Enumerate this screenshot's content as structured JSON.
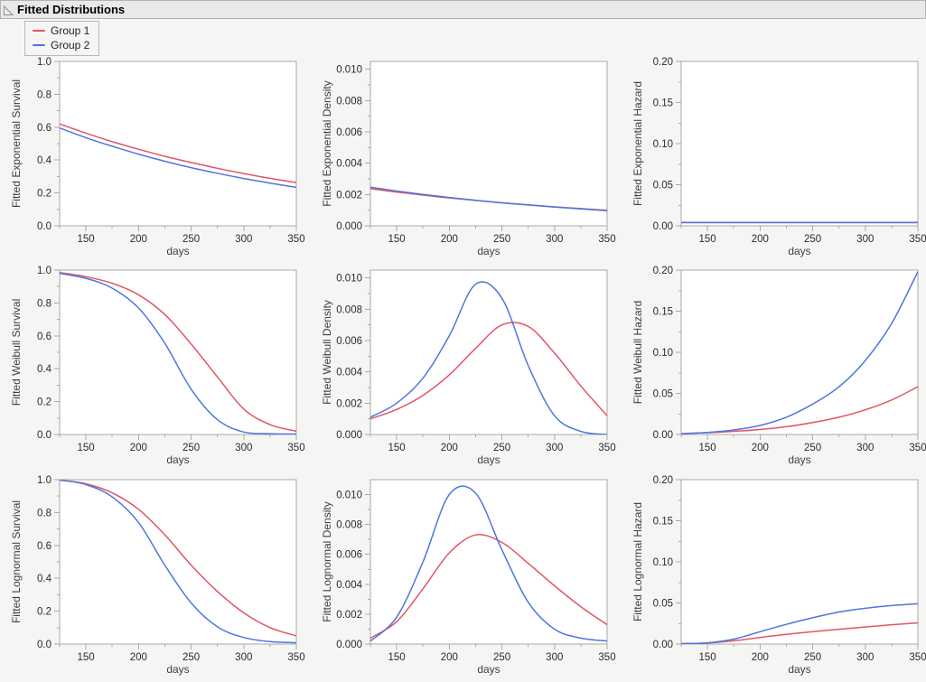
{
  "header": {
    "title": "Fitted Distributions",
    "disclosure_state": "expanded"
  },
  "legend": {
    "position": "top-left",
    "items": [
      {
        "label": "Group 1",
        "color": "#e25563"
      },
      {
        "label": "Group 2",
        "color": "#4c77dc"
      }
    ]
  },
  "theme": {
    "page_bg": "#f5f5f4",
    "band_bg": "#e9e9e9",
    "plot_bg": "#ffffff",
    "frame_color": "#a9a9a9",
    "tick_color": "#a9a9a9",
    "group1_color": "#e25563",
    "group2_color": "#4c77dc"
  },
  "chart_data": {
    "type": "line",
    "grid": false,
    "layout": "3x3",
    "xlabel": "days",
    "xlim": [
      125,
      350
    ],
    "x": [
      125,
      150,
      175,
      200,
      225,
      250,
      275,
      300,
      325,
      350
    ],
    "xticks_major": [
      150,
      200,
      250,
      300,
      350
    ],
    "xticks_minor": [
      125,
      175,
      225,
      275,
      325
    ],
    "plots": [
      {
        "name": "fitted-exponential-survival",
        "ylabel": "Fitted Exponential Survival",
        "ylim": [
          0,
          1.0
        ],
        "yticks_major": [
          0,
          0.2,
          0.4,
          0.6,
          0.8,
          1.0
        ],
        "ytick_labels": [
          "0.0",
          "0.2",
          "0.4",
          "0.6",
          "0.8",
          "1.0"
        ],
        "yticks_minor": [
          0.1,
          0.3,
          0.5,
          0.7,
          0.9
        ],
        "series": [
          {
            "name": "Group 1",
            "values": [
              0.62,
              0.564,
              0.512,
              0.466,
              0.423,
              0.385,
              0.35,
              0.318,
              0.289,
              0.263
            ]
          },
          {
            "name": "Group 2",
            "values": [
              0.595,
              0.536,
              0.484,
              0.436,
              0.393,
              0.354,
              0.32,
              0.288,
              0.26,
              0.234
            ]
          }
        ]
      },
      {
        "name": "fitted-exponential-density",
        "ylabel": "Fitted Exponential Density",
        "ylim": [
          0,
          0.0105
        ],
        "yticks_major": [
          0,
          0.002,
          0.004,
          0.006,
          0.008,
          0.01
        ],
        "ytick_labels": [
          "0.000",
          "0.002",
          "0.004",
          "0.006",
          "0.008",
          "0.010"
        ],
        "yticks_minor": [
          0.001,
          0.003,
          0.005,
          0.007,
          0.009
        ],
        "series": [
          {
            "name": "Group 1",
            "values": [
              0.00237,
              0.00216,
              0.00196,
              0.00178,
              0.00162,
              0.00147,
              0.00134,
              0.00121,
              0.0011,
              0.001
            ]
          },
          {
            "name": "Group 2",
            "values": [
              0.00247,
              0.00222,
              0.00201,
              0.00181,
              0.00163,
              0.00147,
              0.00133,
              0.0012,
              0.00108,
              0.00097
            ]
          }
        ]
      },
      {
        "name": "fitted-exponential-hazard",
        "ylabel": "Fitted Exponential Hazard",
        "ylim": [
          0,
          0.2
        ],
        "yticks_major": [
          0,
          0.05,
          0.1,
          0.15,
          0.2
        ],
        "ytick_labels": [
          "0.00",
          "0.05",
          "0.10",
          "0.15",
          "0.20"
        ],
        "yticks_minor": [
          0.025,
          0.075,
          0.125,
          0.175
        ],
        "series": [
          {
            "name": "Group 1",
            "values": [
              0.0038,
              0.0038,
              0.0038,
              0.0038,
              0.0038,
              0.0038,
              0.0038,
              0.0038,
              0.0038,
              0.0038
            ]
          },
          {
            "name": "Group 2",
            "values": [
              0.0042,
              0.0042,
              0.0042,
              0.0042,
              0.0042,
              0.0042,
              0.0042,
              0.0042,
              0.0042,
              0.0042
            ]
          }
        ]
      },
      {
        "name": "fitted-weibull-survival",
        "ylabel": "Fitted Weibull Survival",
        "ylim": [
          0,
          1.0
        ],
        "yticks_major": [
          0,
          0.2,
          0.4,
          0.6,
          0.8,
          1.0
        ],
        "ytick_labels": [
          "0.0",
          "0.2",
          "0.4",
          "0.6",
          "0.8",
          "1.0"
        ],
        "yticks_minor": [
          0.1,
          0.3,
          0.5,
          0.7,
          0.9
        ],
        "series": [
          {
            "name": "Group 1",
            "values": [
              0.985,
              0.96,
              0.92,
              0.85,
              0.73,
              0.55,
              0.35,
              0.155,
              0.06,
              0.02
            ]
          },
          {
            "name": "Group 2",
            "values": [
              0.98,
              0.95,
              0.89,
              0.77,
              0.555,
              0.275,
              0.09,
              0.015,
              0.005,
              0.003
            ]
          }
        ]
      },
      {
        "name": "fitted-weibull-density",
        "ylabel": "Fitted Weibull Density",
        "ylim": [
          0,
          0.0105
        ],
        "yticks_major": [
          0,
          0.002,
          0.004,
          0.006,
          0.008,
          0.01
        ],
        "ytick_labels": [
          "0.000",
          "0.002",
          "0.004",
          "0.006",
          "0.008",
          "0.010"
        ],
        "yticks_minor": [
          0.001,
          0.003,
          0.005,
          0.007,
          0.009
        ],
        "series": [
          {
            "name": "Group 1",
            "values": [
              0.001,
              0.0016,
              0.0025,
              0.0038,
              0.0055,
              0.007,
              0.0069,
              0.0052,
              0.0031,
              0.0012
            ]
          },
          {
            "name": "Group 2",
            "values": [
              0.0011,
              0.002,
              0.0036,
              0.0063,
              0.0096,
              0.0087,
              0.0044,
              0.0012,
              0.0002,
              0.0
            ]
          }
        ]
      },
      {
        "name": "fitted-weibull-hazard",
        "ylabel": "Fitted Weibull Hazard",
        "ylim": [
          0,
          0.2
        ],
        "yticks_major": [
          0,
          0.05,
          0.1,
          0.15,
          0.2
        ],
        "ytick_labels": [
          "0.00",
          "0.05",
          "0.10",
          "0.15",
          "0.20"
        ],
        "yticks_minor": [
          0.025,
          0.075,
          0.125,
          0.175
        ],
        "series": [
          {
            "name": "Group 1",
            "values": [
              0.001,
              0.0022,
              0.0038,
              0.006,
              0.0095,
              0.0145,
              0.021,
              0.03,
              0.042,
              0.058
            ]
          },
          {
            "name": "Group 2",
            "values": [
              0.001,
              0.0025,
              0.0055,
              0.011,
              0.021,
              0.037,
              0.058,
              0.09,
              0.135,
              0.198
            ]
          }
        ]
      },
      {
        "name": "fitted-lognormal-survival",
        "ylabel": "Fitted Lognormal Survival",
        "ylim": [
          0,
          1.0
        ],
        "yticks_major": [
          0,
          0.2,
          0.4,
          0.6,
          0.8,
          1.0
        ],
        "ytick_labels": [
          "0.0",
          "0.2",
          "0.4",
          "0.6",
          "0.8",
          "1.0"
        ],
        "yticks_minor": [
          0.1,
          0.3,
          0.5,
          0.7,
          0.9
        ],
        "series": [
          {
            "name": "Group 1",
            "values": [
              0.998,
              0.975,
              0.92,
              0.82,
              0.665,
              0.48,
              0.32,
              0.19,
              0.1,
              0.05
            ]
          },
          {
            "name": "Group 2",
            "values": [
              0.998,
              0.97,
              0.895,
              0.74,
              0.48,
              0.25,
              0.105,
              0.04,
              0.015,
              0.008
            ]
          }
        ]
      },
      {
        "name": "fitted-lognormal-density",
        "ylabel": "Fitted Lognormal Density",
        "ylim": [
          0,
          0.011
        ],
        "yticks_major": [
          0,
          0.002,
          0.004,
          0.006,
          0.008,
          0.01
        ],
        "ytick_labels": [
          "0.000",
          "0.002",
          "0.004",
          "0.006",
          "0.008",
          "0.010"
        ],
        "yticks_minor": [
          0.001,
          0.003,
          0.005,
          0.007,
          0.009
        ],
        "series": [
          {
            "name": "Group 1",
            "values": [
              0.0004,
              0.0015,
              0.0037,
              0.0061,
              0.0073,
              0.0068,
              0.0054,
              0.0039,
              0.0025,
              0.0013
            ]
          },
          {
            "name": "Group 2",
            "values": [
              0.0002,
              0.0018,
              0.0055,
              0.01,
              0.0101,
              0.0063,
              0.0028,
              0.001,
              0.0004,
              0.0002
            ]
          }
        ]
      },
      {
        "name": "fitted-lognormal-hazard",
        "ylabel": "Fitted Lognormal Hazard",
        "ylim": [
          0,
          0.2
        ],
        "yticks_major": [
          0,
          0.05,
          0.1,
          0.15,
          0.2
        ],
        "ytick_labels": [
          "0.00",
          "0.05",
          "0.10",
          "0.15",
          "0.20"
        ],
        "yticks_minor": [
          0.025,
          0.075,
          0.125,
          0.175
        ],
        "series": [
          {
            "name": "Group 1",
            "values": [
              0.0005,
              0.0012,
              0.004,
              0.008,
              0.0118,
              0.015,
              0.018,
              0.0208,
              0.0235,
              0.0258
            ]
          },
          {
            "name": "Group 2",
            "values": [
              0.0005,
              0.0015,
              0.006,
              0.015,
              0.024,
              0.032,
              0.039,
              0.0435,
              0.0468,
              0.049
            ]
          }
        ]
      }
    ]
  }
}
